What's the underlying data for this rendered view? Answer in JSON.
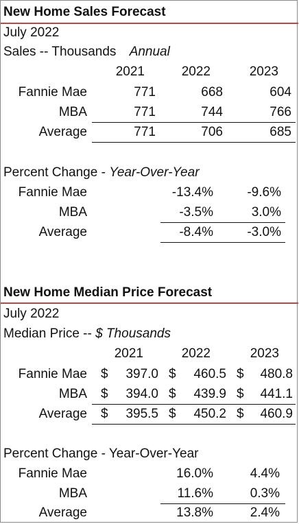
{
  "sales": {
    "title": "New Home Sales Forecast",
    "date": "July 2022",
    "subtitle_prefix": "Sales -- Thousands",
    "subtitle_italic": "Annual",
    "years": [
      "2021",
      "2022",
      "2023"
    ],
    "rows": [
      {
        "label": "Fannie Mae",
        "values": [
          "771",
          "668",
          "604"
        ]
      },
      {
        "label": "MBA",
        "values": [
          "771",
          "744",
          "766"
        ]
      },
      {
        "label": "Average",
        "values": [
          "771",
          "706",
          "685"
        ]
      }
    ],
    "pct_title_prefix": "Percent Change - ",
    "pct_title_italic": "Year-Over-Year",
    "pct_rows": [
      {
        "label": "Fannie Mae",
        "values": [
          "-13.4%",
          "-9.6%"
        ]
      },
      {
        "label": "MBA",
        "values": [
          "-3.5%",
          "3.0%"
        ]
      },
      {
        "label": "Average",
        "values": [
          "-8.4%",
          "-3.0%"
        ]
      }
    ]
  },
  "price": {
    "title": "New Home Median Price Forecast",
    "date": "July 2022",
    "subtitle_prefix": "Median Price -- ",
    "subtitle_italic": "$ Thousands",
    "years": [
      "2021",
      "2022",
      "2023"
    ],
    "currency": "$",
    "rows": [
      {
        "label": "Fannie Mae",
        "values": [
          "397.0",
          "460.5",
          "480.8"
        ]
      },
      {
        "label": "MBA",
        "values": [
          "394.0",
          "439.9",
          "441.1"
        ]
      },
      {
        "label": "Average",
        "values": [
          "395.5",
          "450.2",
          "460.9"
        ]
      }
    ],
    "pct_title": "Percent Change - Year-Over-Year",
    "pct_rows": [
      {
        "label": "Fannie Mae",
        "values": [
          "16.0%",
          "4.4%"
        ]
      },
      {
        "label": "MBA",
        "values": [
          "11.6%",
          "0.3%"
        ]
      },
      {
        "label": "Average",
        "values": [
          "13.8%",
          "2.4%"
        ]
      }
    ]
  }
}
